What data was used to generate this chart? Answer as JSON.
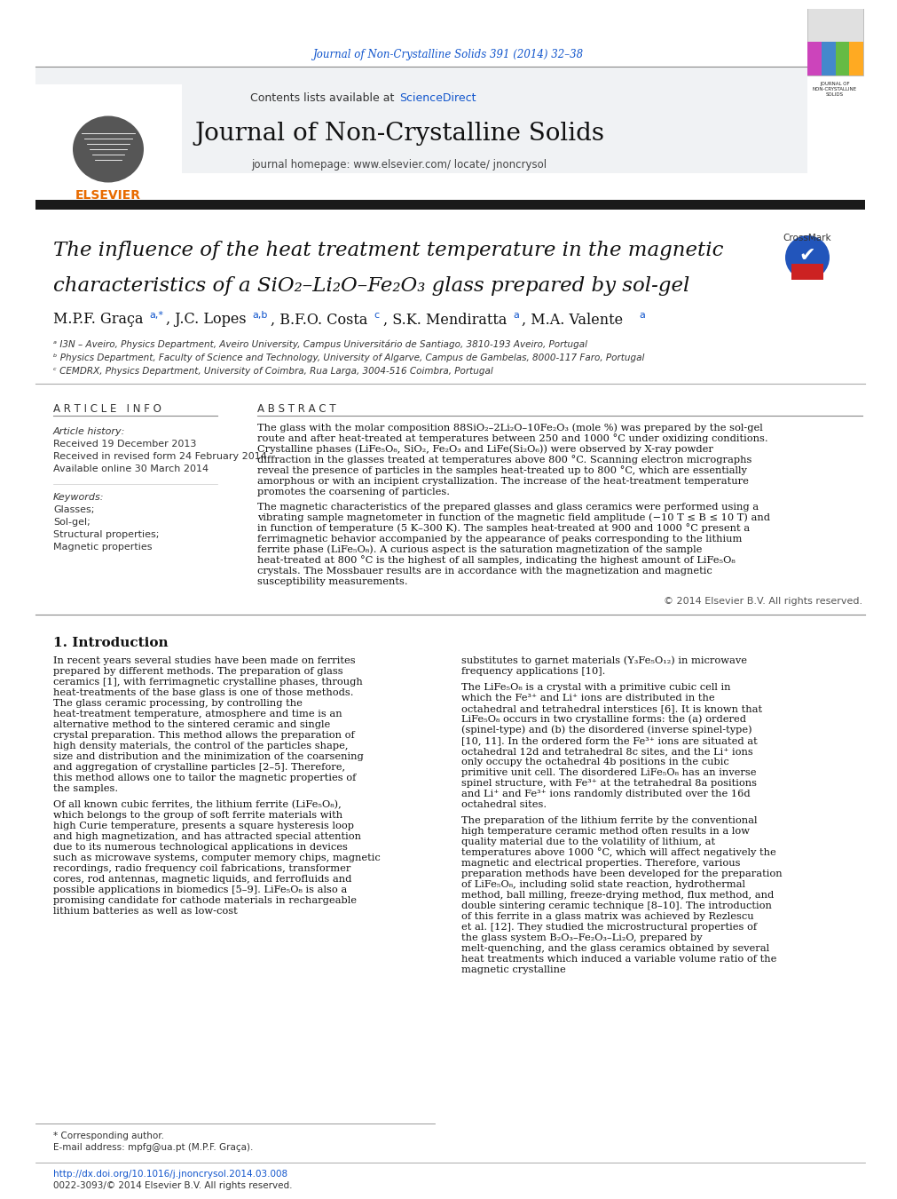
{
  "journal_citation": "Journal of Non-Crystalline Solids 391 (2014) 32–38",
  "journal_citation_color": "#1155cc",
  "header_bg": "#f0f0f0",
  "contents_text": "Contents lists available at ",
  "sciencedirect_text": "ScienceDirect",
  "sciencedirect_color": "#1155cc",
  "journal_name": "Journal of Non-Crystalline Solids",
  "homepage_text": "journal homepage: www.elsevier.com/ locate/ jnoncrysol",
  "thick_bar_color": "#1a1a1a",
  "title_line1": "The influence of the heat treatment temperature in the magnetic",
  "title_line2": "characteristics of a SiO₂–Li₂O–Fe₂O₃ glass prepared by sol-gel",
  "aff_a": "ᵃ I3N – Aveiro, Physics Department, Aveiro University, Campus Universitário de Santiago, 3810-193 Aveiro, Portugal",
  "aff_b": "ᵇ Physics Department, Faculty of Science and Technology, University of Algarve, Campus de Gambelas, 8000-117 Faro, Portugal",
  "aff_c": "ᶜ CEMDRX, Physics Department, University of Coimbra, Rua Larga, 3004-516 Coimbra, Portugal",
  "article_info_header": "A R T I C L E   I N F O",
  "abstract_header": "A B S T R A C T",
  "article_history_label": "Article history:",
  "received": "Received 19 December 2013",
  "revised": "Received in revised form 24 February 2014",
  "available": "Available online 30 March 2014",
  "keywords_label": "Keywords:",
  "keywords": [
    "Glasses;",
    "Sol-gel;",
    "Structural properties;",
    "Magnetic properties"
  ],
  "abstract_p1": "The glass with the molar composition 88SiO₂–2Li₂O–10Fe₂O₃ (mole %) was prepared by the sol-gel route and after heat-treated at temperatures between 250 and 1000 °C under oxidizing conditions. Crystalline phases (LiFe₅O₈, SiO₂, Fe₂O₃ and LiFe(Si₂O₆)) were observed by X-ray powder diffraction in the glasses treated at temperatures above 800 °C. Scanning electron micrographs reveal the presence of particles in the samples heat-treated up to 800 °C, which are essentially amorphous or with an incipient crystallization. The increase of the heat-treatment temperature promotes the coarsening of particles.",
  "abstract_p2": "The magnetic characteristics of the prepared glasses and glass ceramics were performed using a vibrating sample magnetometer in function of the magnetic field amplitude (−10 T ≤ B ≤ 10 T) and in function of temperature (5 K–300 K). The samples heat-treated at 900 and 1000 °C present a ferrimagnetic behavior accompanied by the appearance of peaks corresponding to the lithium ferrite phase (LiFe₅O₈). A curious aspect is the saturation magnetization of the sample heat-treated at 800 °C is the highest of all samples, indicating the highest amount of LiFe₅O₈ crystals. The Mossbauer results are in accordance with the magnetization and magnetic susceptibility measurements.",
  "copyright": "© 2014 Elsevier B.V. All rights reserved.",
  "intro_header": "1. Introduction",
  "intro_col1_p1": "    In recent years several studies have been made on ferrites prepared by different methods. The preparation of glass ceramics [1], with ferrimagnetic crystalline phases, through heat-treatments of the base glass is one of those methods. The glass ceramic processing, by controlling the heat-treatment temperature, atmosphere and time is an alternative method to the sintered ceramic and single crystal preparation. This method allows the preparation of high density materials, the control of the particles shape, size and distribution and the minimization of the coarsening and aggregation of crystalline particles [2–5]. Therefore, this method allows one to tailor the magnetic properties of the samples.",
  "intro_col1_p2": "    Of all known cubic ferrites, the lithium ferrite (LiFe₅O₈), which belongs to the group of soft ferrite materials with high Curie temperature, presents a square hysteresis loop and high magnetization, and has attracted special attention due to its numerous technological applications in devices such as microwave systems, computer memory chips, magnetic recordings, radio frequency coil fabrications, transformer cores, rod antennas, magnetic liquids, and ferrofluids and possible applications in biomedics [5–9]. LiFe₅O₈ is also a promising candidate for cathode materials in rechargeable lithium batteries as well as low-cost",
  "intro_col2_p1": "substitutes to garnet materials (Y₃Fe₅O₁₂) in microwave frequency applications [10].",
  "intro_col2_p2": "    The LiFe₅O₈ is a crystal with a primitive cubic cell in which the Fe³⁺ and Li⁺ ions are distributed in the octahedral and tetrahedral interstices [6]. It is known that LiFe₅O₈ occurs in two crystalline forms: the (a) ordered (spinel-type) and (b) the disordered (inverse spinel-type) [10, 11]. In the ordered form the Fe³⁺ ions are situated at octahedral 12d and tetrahedral 8c sites, and the Li⁺ ions only occupy the octahedral 4b positions in the cubic primitive unit cell. The disordered LiFe₅O₈ has an inverse spinel structure, with Fe³⁺ at the tetrahedral 8a positions and Li⁺ and Fe³⁺ ions randomly distributed over the 16d octahedral sites.",
  "intro_col2_p3": "    The preparation of the lithium ferrite by the conventional high temperature ceramic method often results in a low quality material due to the volatility of lithium, at temperatures above 1000 °C, which will affect negatively the magnetic and electrical properties. Therefore, various preparation methods have been developed for the preparation of LiFe₅O₈, including solid state reaction, hydrothermal method, ball milling, freeze-drying method, flux method, and double sintering ceramic technique [8–10]. The introduction of this ferrite in a glass matrix was achieved by Rezlescu et al. [12]. They studied the microstructural properties of the glass system B₂O₃–Fe₂O₃–Li₂O, prepared by melt-quenching, and the glass ceramics obtained by several heat treatments which induced a variable volume ratio of the magnetic crystalline",
  "footnote_asterisk": "* Corresponding author.",
  "footnote_email": "E-mail address: mpfg@ua.pt (M.P.F. Graça).",
  "doi_line": "http://dx.doi.org/10.1016/j.jnoncrysol.2014.03.008",
  "issn_line": "0022-3093/© 2014 Elsevier B.V. All rights reserved.",
  "background_color": "#ffffff",
  "text_color": "#000000",
  "link_color": "#1155cc"
}
